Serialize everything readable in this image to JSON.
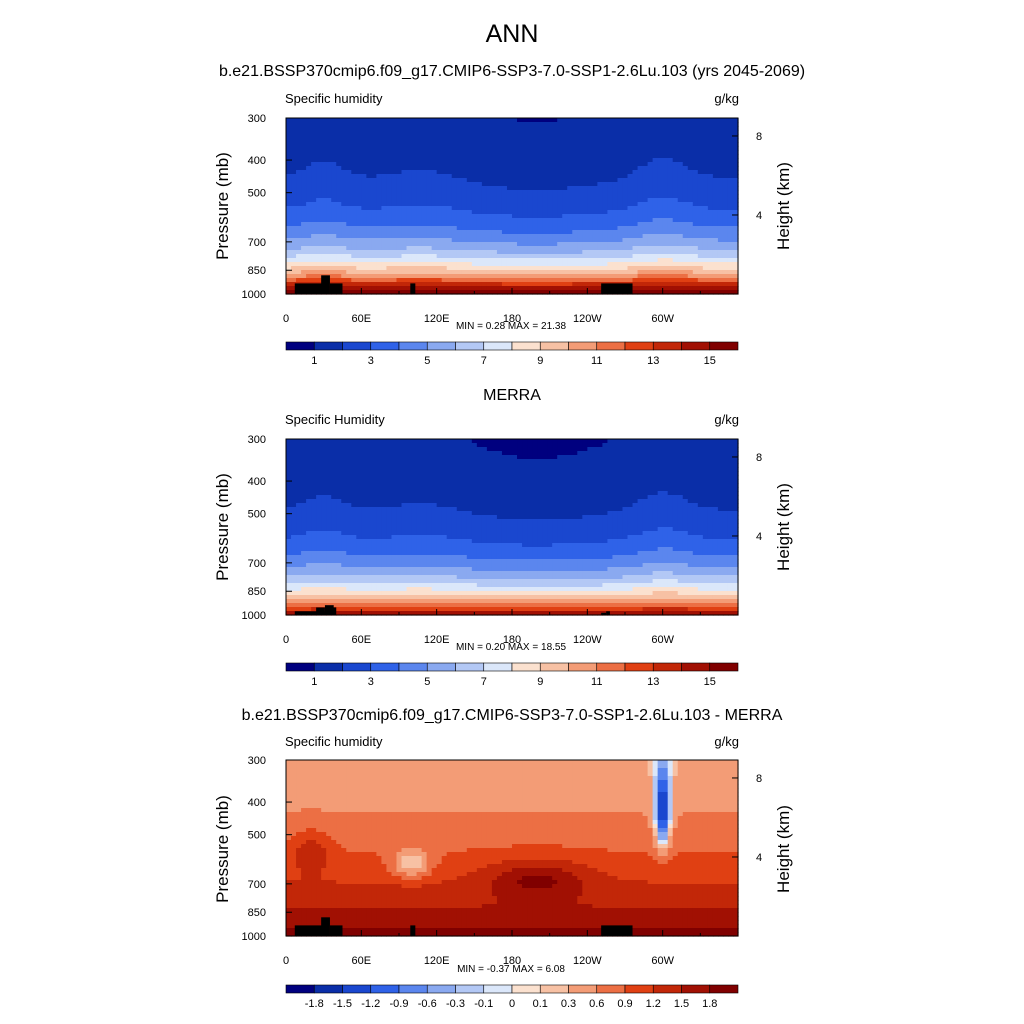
{
  "figure": {
    "title": "ANN"
  },
  "chart_data": [
    {
      "type": "heatmap",
      "title": "b.e21.BSSP370cmip6.f09_g17.CMIP6-SSP3-7.0-SSP1-2.6Lu.103 (yrs 2045-2069)",
      "field_label": "Specific humidity",
      "units": "g/kg",
      "ylabel": "Pressure (mb)",
      "ylabel_right": "Height (km)",
      "y_ticks": [
        "300",
        "400",
        "500",
        "700",
        "850",
        "1000"
      ],
      "y_tick_values": [
        300,
        400,
        500,
        700,
        850,
        1000
      ],
      "right_ticks": [
        "8",
        "4"
      ],
      "right_tick_values": [
        8,
        4
      ],
      "x_ticks": [
        "0",
        "60E",
        "120E",
        "180",
        "120W",
        "60W"
      ],
      "x_tick_values": [
        0,
        60,
        120,
        180,
        240,
        300
      ],
      "xlim": [
        0,
        360
      ],
      "ylim": [
        1000,
        300
      ],
      "minmax_text": "MIN =  0.28  MAX =  21.38",
      "min": 0.28,
      "max": 21.38,
      "colorbar": {
        "levels": [
          0,
          1,
          2,
          3,
          4,
          5,
          6,
          7,
          8,
          9,
          10,
          11,
          12,
          13,
          14,
          15
        ],
        "labels": [
          "1",
          "3",
          "5",
          "7",
          "9",
          "11",
          "13",
          "15"
        ],
        "label_after_level_index": [
          0,
          2,
          4,
          6,
          8,
          10,
          12,
          14
        ]
      }
    },
    {
      "type": "heatmap",
      "title": "MERRA",
      "field_label": "Specific Humidity",
      "units": "g/kg",
      "ylabel": "Pressure (mb)",
      "ylabel_right": "Height (km)",
      "y_ticks": [
        "300",
        "400",
        "500",
        "700",
        "850",
        "1000"
      ],
      "y_tick_values": [
        300,
        400,
        500,
        700,
        850,
        1000
      ],
      "right_ticks": [
        "8",
        "4"
      ],
      "right_tick_values": [
        8,
        4
      ],
      "x_ticks": [
        "0",
        "60E",
        "120E",
        "180",
        "120W",
        "60W"
      ],
      "x_tick_values": [
        0,
        60,
        120,
        180,
        240,
        300
      ],
      "xlim": [
        0,
        360
      ],
      "ylim": [
        1000,
        300
      ],
      "minmax_text": "MIN =  0.20  MAX =  18.55",
      "min": 0.2,
      "max": 18.55,
      "colorbar": {
        "levels": [
          0,
          1,
          2,
          3,
          4,
          5,
          6,
          7,
          8,
          9,
          10,
          11,
          12,
          13,
          14,
          15
        ],
        "labels": [
          "1",
          "3",
          "5",
          "7",
          "9",
          "11",
          "13",
          "15"
        ],
        "label_after_level_index": [
          0,
          2,
          4,
          6,
          8,
          10,
          12,
          14
        ]
      }
    },
    {
      "type": "heatmap",
      "title": "b.e21.BSSP370cmip6.f09_g17.CMIP6-SSP3-7.0-SSP1-2.6Lu.103 - MERRA",
      "field_label": "Specific humidity",
      "units": "g/kg",
      "ylabel": "Pressure (mb)",
      "ylabel_right": "Height (km)",
      "y_ticks": [
        "300",
        "400",
        "500",
        "700",
        "850",
        "1000"
      ],
      "y_tick_values": [
        300,
        400,
        500,
        700,
        850,
        1000
      ],
      "right_ticks": [
        "8",
        "4"
      ],
      "right_tick_values": [
        8,
        4
      ],
      "x_ticks": [
        "0",
        "60E",
        "120E",
        "180",
        "120W",
        "60W"
      ],
      "x_tick_values": [
        0,
        60,
        120,
        180,
        240,
        300
      ],
      "xlim": [
        0,
        360
      ],
      "ylim": [
        1000,
        300
      ],
      "minmax_text": "MIN =  -0.37  MAX =   6.08",
      "min": -0.37,
      "max": 6.08,
      "colorbar": {
        "levels": [
          -2.1,
          -1.8,
          -1.5,
          -1.2,
          -0.9,
          -0.6,
          -0.3,
          -0.1,
          0,
          0.1,
          0.3,
          0.6,
          0.9,
          1.2,
          1.5,
          1.8
        ],
        "labels": [
          "-1.8",
          "-1.5",
          "-1.2",
          "-0.9",
          "-0.6",
          "-0.3",
          "-0.1",
          "0",
          "0.1",
          "0.3",
          "0.6",
          "0.9",
          "1.2",
          "1.5",
          "1.8"
        ],
        "label_after_level_index": [
          0,
          1,
          2,
          3,
          4,
          5,
          6,
          7,
          8,
          9,
          10,
          11,
          12,
          13,
          14
        ]
      }
    }
  ],
  "colors": {
    "palette": [
      "#00007f",
      "#0a2ea8",
      "#1a47cf",
      "#2f62e8",
      "#5b86ee",
      "#8aa9f0",
      "#b3c8f5",
      "#dbe7fa",
      "#fbe1cf",
      "#f7c1a4",
      "#f39c76",
      "#ec6f44",
      "#e04013",
      "#c22708",
      "#a11003",
      "#800000"
    ]
  }
}
